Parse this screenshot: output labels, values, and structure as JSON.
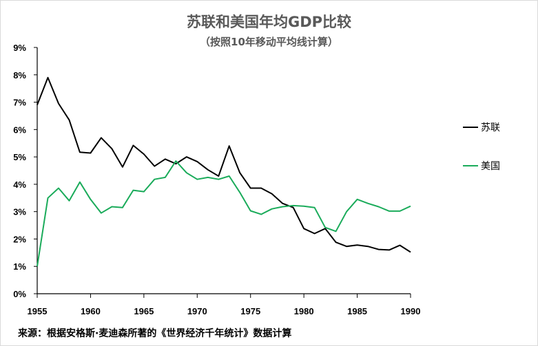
{
  "chart_data": {
    "type": "line",
    "title": "苏联和美国年均GDP比较",
    "subtitle": "（按照10年移动平均线计算）",
    "xlabel": "",
    "ylabel": "",
    "xlim": [
      1955,
      1990
    ],
    "ylim": [
      0,
      9
    ],
    "x_ticks": [
      "1955",
      "1960",
      "1965",
      "1970",
      "1975",
      "1980",
      "1985",
      "1990"
    ],
    "y_ticks": [
      "0%",
      "1%",
      "2%",
      "3%",
      "4%",
      "5%",
      "6%",
      "7%",
      "8%",
      "9%"
    ],
    "grid": false,
    "legend_placement": "right",
    "x": [
      1955,
      1956,
      1957,
      1958,
      1959,
      1960,
      1961,
      1962,
      1963,
      1964,
      1965,
      1966,
      1967,
      1968,
      1969,
      1970,
      1971,
      1972,
      1973,
      1974,
      1975,
      1976,
      1977,
      1978,
      1979,
      1980,
      1981,
      1982,
      1983,
      1984,
      1985,
      1986,
      1987,
      1988,
      1989,
      1990
    ],
    "series": [
      {
        "name": "苏联",
        "color": "#000000",
        "values": [
          6.9,
          7.9,
          6.95,
          6.35,
          5.17,
          5.14,
          5.7,
          5.3,
          4.63,
          5.42,
          5.1,
          4.66,
          4.92,
          4.75,
          5.0,
          4.83,
          4.53,
          4.3,
          5.4,
          4.42,
          3.86,
          3.86,
          3.65,
          3.3,
          3.15,
          2.38,
          2.2,
          2.38,
          1.88,
          1.73,
          1.78,
          1.73,
          1.62,
          1.6,
          1.77,
          1.52
        ]
      },
      {
        "name": "美国",
        "color": "#1aab5a",
        "values": [
          1.0,
          3.5,
          3.86,
          3.4,
          4.08,
          3.45,
          2.95,
          3.18,
          3.15,
          3.78,
          3.73,
          4.18,
          4.25,
          4.85,
          4.42,
          4.18,
          4.25,
          4.18,
          4.3,
          3.7,
          3.03,
          2.9,
          3.1,
          3.18,
          3.22,
          3.2,
          3.15,
          2.42,
          2.28,
          3.0,
          3.45,
          3.3,
          3.18,
          3.02,
          3.02,
          3.2
        ]
      }
    ],
    "source_note": "来源：根据安格斯·麦迪森所著的《世界经济千年统计》数据计算"
  }
}
